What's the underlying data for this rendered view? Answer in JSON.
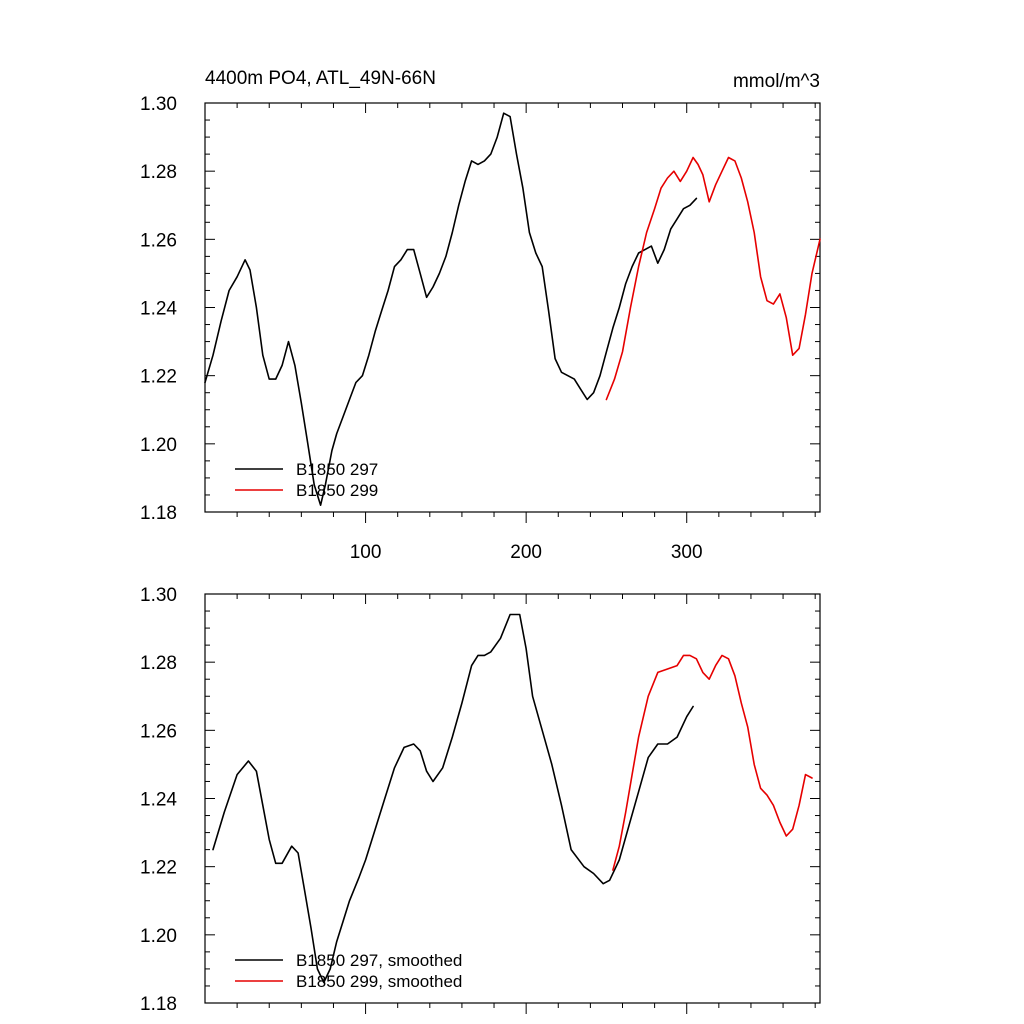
{
  "chart_data": [
    {
      "type": "line",
      "title": "4400m PO4, ATL_49N-66N",
      "title_right": "mmol/m^3",
      "xlabel": "",
      "ylabel": "",
      "xlim": [
        0,
        383
      ],
      "ylim": [
        1.18,
        1.3
      ],
      "x_ticks": [
        100,
        200,
        300
      ],
      "x_tick_labels": [
        "100",
        "200",
        "300"
      ],
      "y_ticks": [
        1.18,
        1.2,
        1.22,
        1.24,
        1.26,
        1.28,
        1.3
      ],
      "y_tick_labels": [
        "1.18",
        "1.20",
        "1.22",
        "1.24",
        "1.26",
        "1.28",
        "1.30"
      ],
      "grid": false,
      "legend_position": "bottom-left",
      "series": [
        {
          "name": "B1850 297",
          "color": "#000000",
          "x": [
            0,
            5,
            10,
            15,
            20,
            25,
            28,
            32,
            36,
            40,
            44,
            48,
            52,
            56,
            60,
            64,
            68,
            72,
            75,
            79,
            82,
            86,
            90,
            94,
            98,
            102,
            106,
            110,
            114,
            118,
            122,
            126,
            130,
            134,
            138,
            142,
            146,
            150,
            154,
            158,
            162,
            166,
            170,
            174,
            178,
            182,
            186,
            190,
            194,
            198,
            202,
            206,
            210,
            214,
            218,
            222,
            226,
            230,
            234,
            238,
            242,
            246,
            250,
            254,
            258,
            262,
            266,
            270,
            274,
            278,
            282,
            286,
            290,
            294,
            298,
            302,
            306
          ],
          "values": [
            1.218,
            1.226,
            1.236,
            1.245,
            1.249,
            1.254,
            1.251,
            1.24,
            1.226,
            1.219,
            1.219,
            1.223,
            1.23,
            1.223,
            1.212,
            1.2,
            1.188,
            1.182,
            1.188,
            1.198,
            1.203,
            1.208,
            1.213,
            1.218,
            1.22,
            1.226,
            1.233,
            1.239,
            1.245,
            1.252,
            1.254,
            1.257,
            1.257,
            1.25,
            1.243,
            1.246,
            1.25,
            1.255,
            1.262,
            1.27,
            1.277,
            1.283,
            1.282,
            1.283,
            1.285,
            1.29,
            1.297,
            1.296,
            1.285,
            1.275,
            1.262,
            1.256,
            1.252,
            1.239,
            1.225,
            1.221,
            1.22,
            1.219,
            1.216,
            1.213,
            1.215,
            1.22,
            1.227,
            1.234,
            1.24,
            1.247,
            1.252,
            1.256,
            1.257,
            1.258,
            1.253,
            1.257,
            1.263,
            1.266,
            1.269,
            1.27,
            1.272
          ]
        },
        {
          "name": "B1850 299",
          "color": "#e60000",
          "x": [
            250,
            255,
            260,
            265,
            270,
            275,
            280,
            284,
            288,
            292,
            296,
            300,
            304,
            307,
            310,
            314,
            318,
            322,
            326,
            330,
            334,
            338,
            342,
            346,
            350,
            354,
            358,
            362,
            366,
            370,
            374,
            378,
            383
          ],
          "values": [
            1.213,
            1.219,
            1.227,
            1.24,
            1.252,
            1.262,
            1.269,
            1.275,
            1.278,
            1.28,
            1.277,
            1.28,
            1.284,
            1.282,
            1.279,
            1.271,
            1.276,
            1.28,
            1.284,
            1.283,
            1.278,
            1.271,
            1.262,
            1.249,
            1.242,
            1.241,
            1.244,
            1.237,
            1.226,
            1.228,
            1.238,
            1.25,
            1.26
          ]
        }
      ]
    },
    {
      "type": "line",
      "title": "",
      "xlabel": "",
      "ylabel": "",
      "xlim": [
        0,
        383
      ],
      "ylim": [
        1.18,
        1.3
      ],
      "x_ticks": [
        100,
        200,
        300
      ],
      "x_tick_labels": [],
      "y_ticks": [
        1.18,
        1.2,
        1.22,
        1.24,
        1.26,
        1.28,
        1.3
      ],
      "y_tick_labels": [
        "1.18",
        "1.20",
        "1.22",
        "1.24",
        "1.26",
        "1.28",
        "1.30"
      ],
      "grid": false,
      "legend_position": "bottom-left",
      "series": [
        {
          "name": "B1850 297, smoothed",
          "color": "#000000",
          "x": [
            5,
            12,
            20,
            27,
            32,
            36,
            40,
            44,
            48,
            54,
            58,
            62,
            66,
            70,
            74,
            78,
            82,
            86,
            90,
            96,
            100,
            106,
            112,
            118,
            124,
            130,
            134,
            138,
            142,
            148,
            154,
            160,
            166,
            170,
            174,
            178,
            184,
            190,
            196,
            200,
            204,
            210,
            216,
            222,
            228,
            236,
            242,
            248,
            252,
            258,
            264,
            270,
            276,
            282,
            288,
            294,
            300,
            304
          ],
          "values": [
            1.225,
            1.236,
            1.247,
            1.251,
            1.248,
            1.238,
            1.228,
            1.221,
            1.221,
            1.226,
            1.224,
            1.213,
            1.202,
            1.19,
            1.186,
            1.19,
            1.198,
            1.204,
            1.21,
            1.217,
            1.222,
            1.231,
            1.24,
            1.249,
            1.255,
            1.256,
            1.254,
            1.248,
            1.245,
            1.249,
            1.258,
            1.268,
            1.279,
            1.282,
            1.282,
            1.283,
            1.287,
            1.294,
            1.294,
            1.284,
            1.27,
            1.26,
            1.25,
            1.238,
            1.225,
            1.22,
            1.218,
            1.215,
            1.216,
            1.222,
            1.232,
            1.242,
            1.252,
            1.256,
            1.256,
            1.258,
            1.264,
            1.267
          ]
        },
        {
          "name": "B1850 299, smoothed",
          "color": "#e60000",
          "x": [
            254,
            258,
            262,
            266,
            270,
            276,
            282,
            288,
            294,
            298,
            302,
            306,
            310,
            314,
            318,
            322,
            326,
            330,
            334,
            338,
            342,
            346,
            350,
            354,
            358,
            362,
            366,
            370,
            374,
            378
          ],
          "values": [
            1.219,
            1.226,
            1.236,
            1.247,
            1.258,
            1.27,
            1.277,
            1.278,
            1.279,
            1.282,
            1.282,
            1.281,
            1.277,
            1.275,
            1.279,
            1.282,
            1.281,
            1.276,
            1.268,
            1.261,
            1.25,
            1.243,
            1.241,
            1.238,
            1.233,
            1.229,
            1.231,
            1.238,
            1.247,
            1.246
          ]
        }
      ]
    }
  ]
}
